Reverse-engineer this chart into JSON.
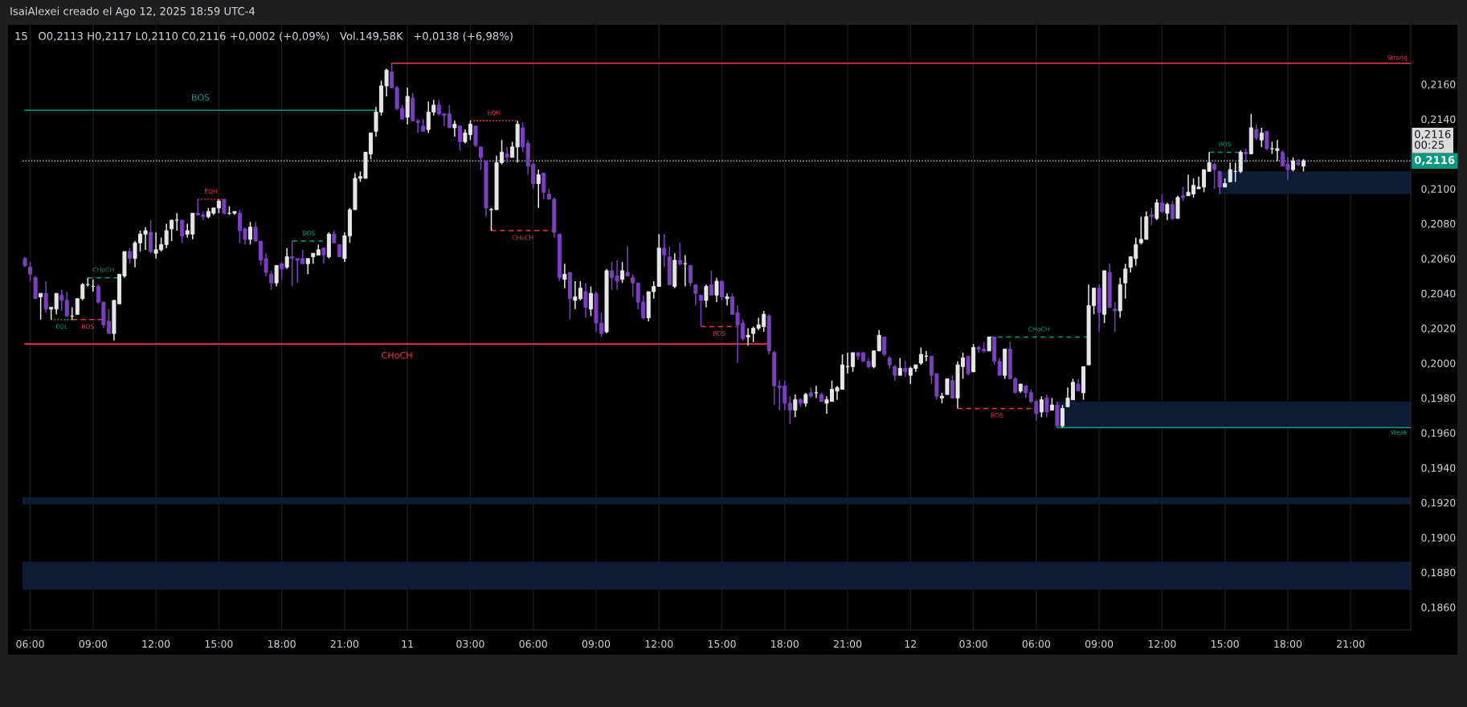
{
  "chart_data": {
    "type": "candlestick",
    "title": "IsaiAlexei creado el Ago 12, 2025 18:59 UTC-4",
    "subtitle": "15   O0,2113 H0,2117 L0,2110 C0,2116 +0,0002 (+0,09%)   Vol.149,58K   +0,0138 (+6,98%)",
    "x": [
      "2025-08-10T05:45",
      "2025-08-10T06:00",
      "2025-08-10T06:15",
      "2025-08-10T06:30",
      "2025-08-10T06:45",
      "2025-08-10T07:00",
      "2025-08-10T07:15",
      "2025-08-10T07:30",
      "2025-08-10T07:45",
      "2025-08-10T08:00",
      "2025-08-10T08:15",
      "2025-08-10T08:30",
      "2025-08-10T08:45",
      "2025-08-10T09:00",
      "2025-08-10T09:15",
      "2025-08-10T09:30",
      "2025-08-10T09:45",
      "2025-08-10T10:00",
      "2025-08-10T10:15",
      "2025-08-10T10:30",
      "2025-08-10T10:45",
      "2025-08-10T11:00",
      "2025-08-10T11:15",
      "2025-08-10T11:30",
      "2025-08-10T11:45",
      "2025-08-10T12:00",
      "2025-08-10T12:15",
      "2025-08-10T12:30",
      "2025-08-10T12:45",
      "2025-08-10T13:00",
      "2025-08-10T13:15",
      "2025-08-10T13:30",
      "2025-08-10T13:45",
      "2025-08-10T14:00",
      "2025-08-10T14:15",
      "2025-08-10T14:30",
      "2025-08-10T14:45",
      "2025-08-10T15:00",
      "2025-08-10T15:15",
      "2025-08-10T15:30",
      "2025-08-10T15:45",
      "2025-08-10T16:00",
      "2025-08-10T16:15",
      "2025-08-10T16:30",
      "2025-08-10T16:45",
      "2025-08-10T17:00",
      "2025-08-10T17:15",
      "2025-08-10T17:30",
      "2025-08-10T17:45",
      "2025-08-10T18:00",
      "2025-08-10T18:15",
      "2025-08-10T18:30",
      "2025-08-10T18:45",
      "2025-08-10T19:00",
      "2025-08-10T19:15",
      "2025-08-10T19:30",
      "2025-08-10T19:45",
      "2025-08-10T20:00",
      "2025-08-10T20:15",
      "2025-08-10T20:30",
      "2025-08-10T20:45",
      "2025-08-10T21:00",
      "2025-08-10T21:15",
      "2025-08-10T21:30",
      "2025-08-10T21:45",
      "2025-08-10T22:00",
      "2025-08-10T22:15",
      "2025-08-10T22:30",
      "2025-08-10T22:45",
      "2025-08-10T23:00",
      "2025-08-10T23:15",
      "2025-08-10T23:30",
      "2025-08-10T23:45",
      "2025-08-11T00:00",
      "2025-08-11T00:15",
      "2025-08-11T00:30",
      "2025-08-11T00:45",
      "2025-08-11T01:00",
      "2025-08-11T01:15",
      "2025-08-11T01:30",
      "2025-08-11T01:45",
      "2025-08-11T02:00",
      "2025-08-11T02:15",
      "2025-08-11T02:30",
      "2025-08-11T02:45",
      "2025-08-11T03:00",
      "2025-08-11T03:15",
      "2025-08-11T03:30",
      "2025-08-11T03:45",
      "2025-08-11T04:00",
      "2025-08-11T04:15",
      "2025-08-11T04:30",
      "2025-08-11T04:45",
      "2025-08-11T05:00",
      "2025-08-11T05:15",
      "2025-08-11T05:30",
      "2025-08-11T05:45",
      "2025-08-11T06:00",
      "2025-08-11T06:15",
      "2025-08-11T06:30",
      "2025-08-11T06:45",
      "2025-08-11T07:00",
      "2025-08-11T07:15",
      "2025-08-11T07:30",
      "2025-08-11T07:45",
      "2025-08-11T08:00",
      "2025-08-11T08:15",
      "2025-08-11T08:30",
      "2025-08-11T08:45",
      "2025-08-11T09:00",
      "2025-08-11T09:15",
      "2025-08-11T09:30",
      "2025-08-11T09:45",
      "2025-08-11T10:00",
      "2025-08-11T10:15",
      "2025-08-11T10:30",
      "2025-08-11T10:45",
      "2025-08-11T11:00",
      "2025-08-11T11:15",
      "2025-08-11T11:30",
      "2025-08-11T11:45",
      "2025-08-11T12:00",
      "2025-08-11T12:15",
      "2025-08-11T12:30",
      "2025-08-11T12:45",
      "2025-08-11T13:00",
      "2025-08-11T13:15",
      "2025-08-11T13:30",
      "2025-08-11T13:45",
      "2025-08-11T14:00",
      "2025-08-11T14:15",
      "2025-08-11T14:30",
      "2025-08-11T14:45",
      "2025-08-11T15:00",
      "2025-08-11T15:15",
      "2025-08-11T15:30",
      "2025-08-11T15:45",
      "2025-08-11T16:00",
      "2025-08-11T16:15",
      "2025-08-11T16:30",
      "2025-08-11T16:45",
      "2025-08-11T17:00",
      "2025-08-11T17:15",
      "2025-08-11T17:30",
      "2025-08-11T17:45",
      "2025-08-11T18:00",
      "2025-08-11T18:15",
      "2025-08-11T18:30",
      "2025-08-11T18:45",
      "2025-08-11T19:00",
      "2025-08-11T19:15",
      "2025-08-11T19:30",
      "2025-08-11T19:45",
      "2025-08-11T20:00",
      "2025-08-11T20:15",
      "2025-08-11T20:30",
      "2025-08-11T20:45",
      "2025-08-11T21:00",
      "2025-08-11T21:15",
      "2025-08-11T21:30",
      "2025-08-11T21:45",
      "2025-08-11T22:00",
      "2025-08-11T22:15",
      "2025-08-11T22:30",
      "2025-08-11T22:45",
      "2025-08-11T23:00",
      "2025-08-11T23:15",
      "2025-08-11T23:30",
      "2025-08-11T23:45",
      "2025-08-12T00:00",
      "2025-08-12T00:15",
      "2025-08-12T00:30",
      "2025-08-12T00:45",
      "2025-08-12T01:00",
      "2025-08-12T01:15",
      "2025-08-12T01:30",
      "2025-08-12T01:45",
      "2025-08-12T02:00",
      "2025-08-12T02:15",
      "2025-08-12T02:30",
      "2025-08-12T02:45",
      "2025-08-12T03:00",
      "2025-08-12T03:15",
      "2025-08-12T03:30",
      "2025-08-12T03:45",
      "2025-08-12T04:00",
      "2025-08-12T04:15",
      "2025-08-12T04:30",
      "2025-08-12T04:45",
      "2025-08-12T05:00",
      "2025-08-12T05:15",
      "2025-08-12T05:30",
      "2025-08-12T05:45",
      "2025-08-12T06:00",
      "2025-08-12T06:15",
      "2025-08-12T06:30",
      "2025-08-12T06:45",
      "2025-08-12T07:00",
      "2025-08-12T07:15",
      "2025-08-12T07:30",
      "2025-08-12T07:45",
      "2025-08-12T08:00",
      "2025-08-12T08:15",
      "2025-08-12T08:30",
      "2025-08-12T08:45",
      "2025-08-12T09:00",
      "2025-08-12T09:15",
      "2025-08-12T09:30",
      "2025-08-12T09:45",
      "2025-08-12T10:00",
      "2025-08-12T10:15",
      "2025-08-12T10:30",
      "2025-08-12T10:45",
      "2025-08-12T11:00",
      "2025-08-12T11:15",
      "2025-08-12T11:30",
      "2025-08-12T11:45",
      "2025-08-12T12:00",
      "2025-08-12T12:15",
      "2025-08-12T12:30",
      "2025-08-12T12:45",
      "2025-08-12T13:00",
      "2025-08-12T13:15",
      "2025-08-12T13:30",
      "2025-08-12T13:45",
      "2025-08-12T14:00",
      "2025-08-12T14:15",
      "2025-08-12T14:30",
      "2025-08-12T14:45",
      "2025-08-12T15:00",
      "2025-08-12T15:15",
      "2025-08-12T15:30",
      "2025-08-12T15:45",
      "2025-08-12T16:00",
      "2025-08-12T16:15",
      "2025-08-12T16:30",
      "2025-08-12T16:45",
      "2025-08-12T17:00",
      "2025-08-12T17:15",
      "2025-08-12T17:30",
      "2025-08-12T17:45",
      "2025-08-12T18:00",
      "2025-08-12T18:15",
      "2025-08-12T18:30",
      "2025-08-12T18:45"
    ],
    "ohlc": [
      [
        0.206,
        0.2061,
        0.2055,
        0.2056
      ],
      [
        0.2055,
        0.2058,
        0.2047,
        0.2051
      ],
      [
        0.2049,
        0.205,
        0.2037,
        0.2037
      ],
      [
        0.2038,
        0.204,
        0.2025,
        0.204
      ],
      [
        0.204,
        0.2047,
        0.2029,
        0.2031
      ],
      [
        0.2031,
        0.2032,
        0.2025,
        0.2032
      ],
      [
        0.2031,
        0.204,
        0.2028,
        0.204
      ],
      [
        0.2039,
        0.2042,
        0.203,
        0.2036
      ],
      [
        0.2036,
        0.2041,
        0.2027,
        0.2027
      ],
      [
        0.2027,
        0.2032,
        0.2025,
        0.2027
      ],
      [
        0.2028,
        0.2037,
        0.2028,
        0.2037
      ],
      [
        0.2037,
        0.2046,
        0.2036,
        0.2045
      ],
      [
        0.2045,
        0.2049,
        0.2044,
        0.2045
      ],
      [
        0.2044,
        0.2048,
        0.2041,
        0.2044
      ],
      [
        0.2044,
        0.2045,
        0.2034,
        0.2035
      ],
      [
        0.2035,
        0.2035,
        0.202,
        0.2022
      ],
      [
        0.2024,
        0.2031,
        0.2017,
        0.2017
      ],
      [
        0.2017,
        0.2036,
        0.2013,
        0.2036
      ],
      [
        0.2034,
        0.2051,
        0.2034,
        0.2051
      ],
      [
        0.205,
        0.2064,
        0.2049,
        0.2064
      ],
      [
        0.2064,
        0.2066,
        0.2057,
        0.206
      ],
      [
        0.206,
        0.207,
        0.2055,
        0.2069
      ],
      [
        0.2069,
        0.2076,
        0.2064,
        0.2074
      ],
      [
        0.2074,
        0.2078,
        0.2065,
        0.2076
      ],
      [
        0.2075,
        0.2082,
        0.2063,
        0.2064
      ],
      [
        0.2063,
        0.2075,
        0.206,
        0.2065
      ],
      [
        0.2065,
        0.2072,
        0.2064,
        0.2068
      ],
      [
        0.2068,
        0.208,
        0.2066,
        0.2076
      ],
      [
        0.2077,
        0.2082,
        0.207,
        0.2082
      ],
      [
        0.2082,
        0.2086,
        0.2076,
        0.2082
      ],
      [
        0.2082,
        0.2082,
        0.2069,
        0.2073
      ],
      [
        0.2074,
        0.208,
        0.2072,
        0.2076
      ],
      [
        0.2074,
        0.2086,
        0.2071,
        0.2086
      ],
      [
        0.2086,
        0.2094,
        0.2085,
        0.2085
      ],
      [
        0.2085,
        0.2087,
        0.2082,
        0.2084
      ],
      [
        0.2084,
        0.2089,
        0.2083,
        0.2087
      ],
      [
        0.2086,
        0.2089,
        0.2085,
        0.2089
      ],
      [
        0.2089,
        0.2094,
        0.2086,
        0.2093
      ],
      [
        0.2094,
        0.2094,
        0.2085,
        0.2086
      ],
      [
        0.2086,
        0.209,
        0.2085,
        0.2086
      ],
      [
        0.2086,
        0.2087,
        0.2085,
        0.2087
      ],
      [
        0.2086,
        0.2088,
        0.2069,
        0.2076
      ],
      [
        0.2077,
        0.2078,
        0.2068,
        0.2071
      ],
      [
        0.2071,
        0.2081,
        0.2068,
        0.2078
      ],
      [
        0.2078,
        0.2081,
        0.207,
        0.207
      ],
      [
        0.207,
        0.207,
        0.2056,
        0.2059
      ],
      [
        0.206,
        0.2063,
        0.205,
        0.2052
      ],
      [
        0.2051,
        0.2053,
        0.2042,
        0.2046
      ],
      [
        0.2046,
        0.2056,
        0.2044,
        0.2056
      ],
      [
        0.2057,
        0.2058,
        0.2048,
        0.2054
      ],
      [
        0.2055,
        0.2066,
        0.2054,
        0.2061
      ],
      [
        0.2061,
        0.207,
        0.2044,
        0.206
      ],
      [
        0.206,
        0.206,
        0.2046,
        0.2059
      ],
      [
        0.206,
        0.2065,
        0.2057,
        0.2057
      ],
      [
        0.2057,
        0.206,
        0.2051,
        0.206
      ],
      [
        0.2061,
        0.2063,
        0.2057,
        0.2063
      ],
      [
        0.2062,
        0.2068,
        0.2062,
        0.2065
      ],
      [
        0.2066,
        0.2066,
        0.2057,
        0.2062
      ],
      [
        0.2061,
        0.2075,
        0.206,
        0.2074
      ],
      [
        0.2074,
        0.2076,
        0.2069,
        0.2069
      ],
      [
        0.2068,
        0.2068,
        0.2061,
        0.2061
      ],
      [
        0.206,
        0.2075,
        0.2058,
        0.2073
      ],
      [
        0.2073,
        0.2089,
        0.2069,
        0.2088
      ],
      [
        0.2088,
        0.2109,
        0.2088,
        0.2106
      ],
      [
        0.2106,
        0.211,
        0.2104,
        0.2107
      ],
      [
        0.2106,
        0.2121,
        0.2106,
        0.2121
      ],
      [
        0.212,
        0.2132,
        0.2117,
        0.2132
      ],
      [
        0.2133,
        0.2147,
        0.213,
        0.2144
      ],
      [
        0.2144,
        0.2162,
        0.2142,
        0.2159
      ],
      [
        0.2159,
        0.2169,
        0.2153,
        0.2168
      ],
      [
        0.2167,
        0.2172,
        0.2158,
        0.2158
      ],
      [
        0.2158,
        0.2159,
        0.2145,
        0.2146
      ],
      [
        0.2146,
        0.2148,
        0.214,
        0.214
      ],
      [
        0.2141,
        0.2158,
        0.2137,
        0.2153
      ],
      [
        0.2152,
        0.2155,
        0.2139,
        0.2139
      ],
      [
        0.2139,
        0.214,
        0.2132,
        0.2138
      ],
      [
        0.2136,
        0.214,
        0.2133,
        0.2133
      ],
      [
        0.2134,
        0.215,
        0.2132,
        0.2144
      ],
      [
        0.2144,
        0.2151,
        0.2142,
        0.2148
      ],
      [
        0.2148,
        0.2151,
        0.2142,
        0.2143
      ],
      [
        0.2143,
        0.2143,
        0.2136,
        0.2142
      ],
      [
        0.2143,
        0.2148,
        0.2135,
        0.2135
      ],
      [
        0.2135,
        0.2139,
        0.213,
        0.2137
      ],
      [
        0.2136,
        0.2136,
        0.2122,
        0.2127
      ],
      [
        0.2127,
        0.2134,
        0.2126,
        0.2132
      ],
      [
        0.2131,
        0.2139,
        0.2128,
        0.2137
      ],
      [
        0.2136,
        0.2136,
        0.2124,
        0.2125
      ],
      [
        0.2124,
        0.2124,
        0.2111,
        0.2118
      ],
      [
        0.2116,
        0.2116,
        0.2084,
        0.2089
      ],
      [
        0.2088,
        0.2089,
        0.2076,
        0.2088
      ],
      [
        0.2088,
        0.2119,
        0.2088,
        0.2115
      ],
      [
        0.2115,
        0.2128,
        0.2114,
        0.2121
      ],
      [
        0.212,
        0.2124,
        0.2115,
        0.2118
      ],
      [
        0.2118,
        0.2127,
        0.2118,
        0.2124
      ],
      [
        0.2124,
        0.2139,
        0.2115,
        0.2137
      ],
      [
        0.2135,
        0.2138,
        0.2121,
        0.2124
      ],
      [
        0.2126,
        0.2128,
        0.2108,
        0.2113
      ],
      [
        0.2114,
        0.2115,
        0.21,
        0.2103
      ],
      [
        0.2103,
        0.2111,
        0.2089,
        0.2108
      ],
      [
        0.2109,
        0.2109,
        0.2094,
        0.2098
      ],
      [
        0.2097,
        0.21,
        0.2094,
        0.2094
      ],
      [
        0.2094,
        0.2095,
        0.2072,
        0.2075
      ],
      [
        0.2074,
        0.2074,
        0.2047,
        0.2049
      ],
      [
        0.2048,
        0.2057,
        0.2043,
        0.2051
      ],
      [
        0.2052,
        0.2052,
        0.2025,
        0.2037
      ],
      [
        0.2036,
        0.2047,
        0.2031,
        0.2038
      ],
      [
        0.2037,
        0.2047,
        0.2036,
        0.2043
      ],
      [
        0.2041,
        0.2046,
        0.2026,
        0.2032
      ],
      [
        0.2031,
        0.2044,
        0.2027,
        0.204
      ],
      [
        0.204,
        0.2041,
        0.2018,
        0.2023
      ],
      [
        0.2023,
        0.2029,
        0.2015,
        0.2017
      ],
      [
        0.2018,
        0.2054,
        0.2017,
        0.2053
      ],
      [
        0.2053,
        0.2058,
        0.2042,
        0.2049
      ],
      [
        0.205,
        0.2059,
        0.2042,
        0.2047
      ],
      [
        0.2048,
        0.2058,
        0.2046,
        0.2053
      ],
      [
        0.2052,
        0.2067,
        0.205,
        0.205
      ],
      [
        0.2049,
        0.2051,
        0.2038,
        0.2046
      ],
      [
        0.2046,
        0.2046,
        0.2031,
        0.2035
      ],
      [
        0.2035,
        0.2039,
        0.2025,
        0.2026
      ],
      [
        0.2026,
        0.2041,
        0.2024,
        0.2041
      ],
      [
        0.2041,
        0.2047,
        0.2037,
        0.2044
      ],
      [
        0.2044,
        0.2074,
        0.2044,
        0.2066
      ],
      [
        0.2066,
        0.2074,
        0.2055,
        0.2062
      ],
      [
        0.2061,
        0.2067,
        0.2045,
        0.2045
      ],
      [
        0.2044,
        0.2063,
        0.2043,
        0.2059
      ],
      [
        0.2059,
        0.2069,
        0.2056,
        0.2057
      ],
      [
        0.2057,
        0.2062,
        0.2044,
        0.2057
      ],
      [
        0.2056,
        0.2056,
        0.2044,
        0.2046
      ],
      [
        0.2045,
        0.2045,
        0.2033,
        0.204
      ],
      [
        0.2039,
        0.2039,
        0.2021,
        0.2036
      ],
      [
        0.2036,
        0.2045,
        0.2032,
        0.2044
      ],
      [
        0.2045,
        0.2053,
        0.2039,
        0.2039
      ],
      [
        0.2039,
        0.2049,
        0.2035,
        0.2047
      ],
      [
        0.2047,
        0.2047,
        0.2036,
        0.2038
      ],
      [
        0.2037,
        0.204,
        0.2033,
        0.2038
      ],
      [
        0.2038,
        0.204,
        0.2028,
        0.2028
      ],
      [
        0.2029,
        0.2033,
        0.2,
        0.2022
      ],
      [
        0.2023,
        0.2025,
        0.2013,
        0.2014
      ],
      [
        0.2015,
        0.202,
        0.201,
        0.2016
      ],
      [
        0.2017,
        0.2021,
        0.2012,
        0.202
      ],
      [
        0.202,
        0.2026,
        0.2019,
        0.2022
      ],
      [
        0.2021,
        0.203,
        0.2018,
        0.2028
      ],
      [
        0.2027,
        0.2028,
        0.2005,
        0.2007
      ],
      [
        0.2006,
        0.2007,
        0.1976,
        0.1987
      ],
      [
        0.1987,
        0.199,
        0.1973,
        0.1986
      ],
      [
        0.1987,
        0.199,
        0.1973,
        0.1977
      ],
      [
        0.1977,
        0.1981,
        0.1965,
        0.1973
      ],
      [
        0.1973,
        0.1982,
        0.1969,
        0.1979
      ],
      [
        0.1979,
        0.198,
        0.1975,
        0.1977
      ],
      [
        0.1977,
        0.1983,
        0.1975,
        0.1982
      ],
      [
        0.1983,
        0.1986,
        0.198,
        0.1981
      ],
      [
        0.1983,
        0.1987,
        0.198,
        0.1983
      ],
      [
        0.1982,
        0.1983,
        0.1978,
        0.1978
      ],
      [
        0.1977,
        0.1981,
        0.1971,
        0.1979
      ],
      [
        0.1978,
        0.199,
        0.1978,
        0.1985
      ],
      [
        0.1984,
        0.1987,
        0.1979,
        0.1986
      ],
      [
        0.1985,
        0.2005,
        0.1985,
        0.1999
      ],
      [
        0.1998,
        0.2006,
        0.1994,
        0.1998
      ],
      [
        0.1998,
        0.2006,
        0.1995,
        0.2006
      ],
      [
        0.2006,
        0.2006,
        0.2002,
        0.2004
      ],
      [
        0.2006,
        0.2006,
        0.2001,
        0.2001
      ],
      [
        0.2001,
        0.2003,
        0.1997,
        0.1998
      ],
      [
        0.1998,
        0.2007,
        0.1997,
        0.2007
      ],
      [
        0.2007,
        0.2019,
        0.2007,
        0.2016
      ],
      [
        0.2015,
        0.2015,
        0.2004,
        0.2005
      ],
      [
        0.2003,
        0.2004,
        0.1997,
        0.1999
      ],
      [
        0.1998,
        0.1999,
        0.199,
        0.1993
      ],
      [
        0.1993,
        0.2003,
        0.1993,
        0.1997
      ],
      [
        0.1997,
        0.2001,
        0.1992,
        0.1995
      ],
      [
        0.1993,
        0.1998,
        0.1988,
        0.1997
      ],
      [
        0.1997,
        0.1999,
        0.1995,
        0.1999
      ],
      [
        0.2,
        0.2009,
        0.1999,
        0.2005
      ],
      [
        0.2004,
        0.2007,
        0.2001,
        0.2004
      ],
      [
        0.2004,
        0.2004,
        0.1988,
        0.1993
      ],
      [
        0.1994,
        0.1994,
        0.1979,
        0.1981
      ],
      [
        0.198,
        0.1983,
        0.1977,
        0.1981
      ],
      [
        0.1982,
        0.1991,
        0.1982,
        0.1991
      ],
      [
        0.199,
        0.1993,
        0.198,
        0.198
      ],
      [
        0.198,
        0.2001,
        0.1974,
        0.1999
      ],
      [
        0.1998,
        0.2006,
        0.1991,
        0.2003
      ],
      [
        0.2004,
        0.2004,
        0.1993,
        0.1994
      ],
      [
        0.1995,
        0.2011,
        0.1995,
        0.2009
      ],
      [
        0.2009,
        0.201,
        0.2006,
        0.2008
      ],
      [
        0.2008,
        0.2012,
        0.2006,
        0.2007
      ],
      [
        0.2007,
        0.2015,
        0.2007,
        0.2015
      ],
      [
        0.2015,
        0.2015,
        0.1999,
        0.2001
      ],
      [
        0.2001,
        0.2003,
        0.1993,
        0.1993
      ],
      [
        0.1993,
        0.2008,
        0.1991,
        0.2008
      ],
      [
        0.2008,
        0.2012,
        0.1991,
        0.1991
      ],
      [
        0.1991,
        0.1992,
        0.1983,
        0.1983
      ],
      [
        0.1984,
        0.1988,
        0.1983,
        0.1988
      ],
      [
        0.1987,
        0.1987,
        0.198,
        0.1983
      ],
      [
        0.1983,
        0.1985,
        0.1977,
        0.1978
      ],
      [
        0.1978,
        0.1979,
        0.1967,
        0.1971
      ],
      [
        0.1972,
        0.1981,
        0.1969,
        0.1979
      ],
      [
        0.198,
        0.1982,
        0.1969,
        0.1972
      ],
      [
        0.1973,
        0.198,
        0.1973,
        0.1976
      ],
      [
        0.1976,
        0.1978,
        0.1963,
        0.1964
      ],
      [
        0.1964,
        0.1976,
        0.1963,
        0.1974
      ],
      [
        0.1975,
        0.1986,
        0.1975,
        0.198
      ],
      [
        0.1979,
        0.1991,
        0.1979,
        0.1989
      ],
      [
        0.1988,
        0.1991,
        0.1984,
        0.1984
      ],
      [
        0.1983,
        0.1998,
        0.1979,
        0.1998
      ],
      [
        0.1999,
        0.2045,
        0.1999,
        0.2033
      ],
      [
        0.2033,
        0.2043,
        0.2028,
        0.2043
      ],
      [
        0.2043,
        0.2045,
        0.2018,
        0.2029
      ],
      [
        0.2028,
        0.2053,
        0.2023,
        0.2053
      ],
      [
        0.2052,
        0.2057,
        0.2032,
        0.2032
      ],
      [
        0.2031,
        0.2035,
        0.2018,
        0.203
      ],
      [
        0.203,
        0.2049,
        0.2026,
        0.2045
      ],
      [
        0.2046,
        0.2057,
        0.2037,
        0.2054
      ],
      [
        0.2055,
        0.2061,
        0.2052,
        0.2061
      ],
      [
        0.206,
        0.2072,
        0.2056,
        0.2068
      ],
      [
        0.2069,
        0.2084,
        0.2068,
        0.2071
      ],
      [
        0.2071,
        0.2087,
        0.2071,
        0.2084
      ],
      [
        0.2085,
        0.2089,
        0.2079,
        0.2084
      ],
      [
        0.2083,
        0.2094,
        0.2082,
        0.2092
      ],
      [
        0.2092,
        0.2097,
        0.2086,
        0.2087
      ],
      [
        0.2086,
        0.2092,
        0.2082,
        0.2091
      ],
      [
        0.2091,
        0.2093,
        0.2082,
        0.2083
      ],
      [
        0.2083,
        0.2096,
        0.2083,
        0.2095
      ],
      [
        0.2096,
        0.2101,
        0.2093,
        0.2095
      ],
      [
        0.2096,
        0.2108,
        0.2096,
        0.2098
      ],
      [
        0.2097,
        0.2106,
        0.2095,
        0.2102
      ],
      [
        0.21,
        0.2107,
        0.21,
        0.2101
      ],
      [
        0.2101,
        0.2111,
        0.2098,
        0.2111
      ],
      [
        0.211,
        0.2121,
        0.211,
        0.2115
      ],
      [
        0.2114,
        0.2115,
        0.21,
        0.2111
      ],
      [
        0.211,
        0.211,
        0.2097,
        0.2101
      ],
      [
        0.2101,
        0.2106,
        0.2101,
        0.2103
      ],
      [
        0.2104,
        0.2115,
        0.2104,
        0.2111
      ],
      [
        0.211,
        0.2115,
        0.2104,
        0.211
      ],
      [
        0.211,
        0.2122,
        0.2109,
        0.2121
      ],
      [
        0.2121,
        0.2123,
        0.2115,
        0.212
      ],
      [
        0.212,
        0.2143,
        0.212,
        0.2135
      ],
      [
        0.2134,
        0.2137,
        0.2128,
        0.2129
      ],
      [
        0.2128,
        0.2135,
        0.2124,
        0.2132
      ],
      [
        0.2133,
        0.2133,
        0.2122,
        0.2123
      ],
      [
        0.2123,
        0.2127,
        0.212,
        0.2123
      ],
      [
        0.2122,
        0.2128,
        0.2116,
        0.2123
      ],
      [
        0.2121,
        0.2122,
        0.2113,
        0.2113
      ],
      [
        0.2114,
        0.2118,
        0.2105,
        0.2111
      ],
      [
        0.2111,
        0.2118,
        0.211,
        0.2116
      ],
      [
        0.2115,
        0.2117,
        0.2113,
        0.2114
      ],
      [
        0.2113,
        0.2117,
        0.211,
        0.2116
      ]
    ],
    "colors": [
      "#7b3fc0",
      "#7b3fc0",
      "#7b3fc0",
      "#e6e6e6",
      "#7b3fc0",
      "#e6e6e6",
      "#e6e6e6",
      "#7b3fc0",
      "#7b3fc0",
      "#e6e6e6",
      "#e6e6e6",
      "#e6e6e6",
      "#e6e6e6",
      "#e6e6e6",
      "#7b3fc0",
      "#7b3fc0",
      "#7b3fc0",
      "#e6e6e6",
      "#e6e6e6",
      "#e6e6e6",
      "#7b3fc0",
      "#e6e6e6",
      "#e6e6e6",
      "#e6e6e6",
      "#7b3fc0",
      "#e6e6e6",
      "#e6e6e6",
      "#e6e6e6",
      "#e6e6e6",
      "#e6e6e6",
      "#7b3fc0",
      "#e6e6e6",
      "#e6e6e6",
      "#7b3fc0",
      "#7b3fc0",
      "#e6e6e6",
      "#e6e6e6",
      "#e6e6e6",
      "#7b3fc0",
      "#e6e6e6",
      "#e6e6e6",
      "#7b3fc0",
      "#7b3fc0",
      "#e6e6e6",
      "#7b3fc0",
      "#7b3fc0",
      "#7b3fc0",
      "#7b3fc0",
      "#e6e6e6",
      "#7b3fc0",
      "#e6e6e6",
      "#7b3fc0",
      "#7b3fc0",
      "#7b3fc0",
      "#e6e6e6",
      "#e6e6e6",
      "#e6e6e6",
      "#7b3fc0",
      "#e6e6e6",
      "#7b3fc0",
      "#7b3fc0",
      "#e6e6e6",
      "#e6e6e6",
      "#e6e6e6",
      "#e6e6e6",
      "#e6e6e6",
      "#e6e6e6",
      "#e6e6e6",
      "#e6e6e6",
      "#e6e6e6",
      "#7b3fc0",
      "#7b3fc0",
      "#7b3fc0",
      "#e6e6e6",
      "#7b3fc0",
      "#7b3fc0",
      "#7b3fc0",
      "#e6e6e6",
      "#e6e6e6",
      "#7b3fc0",
      "#7b3fc0",
      "#7b3fc0",
      "#e6e6e6",
      "#7b3fc0",
      "#e6e6e6",
      "#e6e6e6",
      "#7b3fc0",
      "#7b3fc0",
      "#7b3fc0",
      "#e6e6e6",
      "#e6e6e6",
      "#e6e6e6",
      "#7b3fc0",
      "#e6e6e6",
      "#e6e6e6",
      "#7b3fc0",
      "#7b3fc0",
      "#7b3fc0",
      "#e6e6e6",
      "#7b3fc0",
      "#7b3fc0",
      "#7b3fc0",
      "#7b3fc0",
      "#e6e6e6",
      "#7b3fc0",
      "#e6e6e6",
      "#e6e6e6",
      "#7b3fc0",
      "#e6e6e6",
      "#7b3fc0",
      "#7b3fc0",
      "#e6e6e6",
      "#7b3fc0",
      "#7b3fc0",
      "#e6e6e6",
      "#7b3fc0",
      "#7b3fc0",
      "#7b3fc0",
      "#7b3fc0",
      "#e6e6e6",
      "#e6e6e6",
      "#e6e6e6",
      "#7b3fc0",
      "#7b3fc0",
      "#e6e6e6",
      "#7b3fc0",
      "#e6e6e6",
      "#7b3fc0",
      "#7b3fc0",
      "#7b3fc0",
      "#e6e6e6",
      "#7b3fc0",
      "#e6e6e6",
      "#7b3fc0",
      "#e6e6e6",
      "#7b3fc0",
      "#7b3fc0",
      "#7b3fc0",
      "#e6e6e6",
      "#e6e6e6",
      "#e6e6e6",
      "#e6e6e6",
      "#7b3fc0",
      "#7b3fc0",
      "#7b3fc0",
      "#7b3fc0",
      "#7b3fc0",
      "#e6e6e6",
      "#7b3fc0",
      "#e6e6e6",
      "#7b3fc0",
      "#e6e6e6",
      "#7b3fc0",
      "#e6e6e6",
      "#e6e6e6",
      "#e6e6e6",
      "#e6e6e6",
      "#e6e6e6",
      "#e6e6e6",
      "#7b3fc0",
      "#7b3fc0",
      "#7b3fc0",
      "#e6e6e6",
      "#e6e6e6",
      "#7b3fc0",
      "#7b3fc0",
      "#7b3fc0",
      "#e6e6e6",
      "#7b3fc0",
      "#e6e6e6",
      "#e6e6e6",
      "#e6e6e6",
      "#e6e6e6",
      "#7b3fc0",
      "#7b3fc0",
      "#e6e6e6",
      "#e6e6e6",
      "#7b3fc0",
      "#e6e6e6",
      "#e6e6e6",
      "#7b3fc0",
      "#e6e6e6",
      "#7b3fc0",
      "#7b3fc0",
      "#e6e6e6",
      "#7b3fc0",
      "#7b3fc0",
      "#e6e6e6",
      "#7b3fc0",
      "#7b3fc0",
      "#e6e6e6",
      "#7b3fc0",
      "#7b3fc0",
      "#7b3fc0",
      "#e6e6e6",
      "#7b3fc0",
      "#e6e6e6",
      "#7b3fc0",
      "#e6e6e6",
      "#e6e6e6",
      "#e6e6e6",
      "#7b3fc0",
      "#e6e6e6",
      "#e6e6e6",
      "#e6e6e6",
      "#7b3fc0",
      "#e6e6e6",
      "#7b3fc0",
      "#7b3fc0",
      "#e6e6e6",
      "#e6e6e6",
      "#e6e6e6",
      "#e6e6e6",
      "#e6e6e6",
      "#e6e6e6",
      "#7b3fc0",
      "#e6e6e6",
      "#7b3fc0",
      "#e6e6e6",
      "#7b3fc0",
      "#e6e6e6",
      "#7b3fc0",
      "#e6e6e6",
      "#e6e6e6",
      "#e6e6e6",
      "#e6e6e6",
      "#e6e6e6",
      "#7b3fc0",
      "#7b3fc0",
      "#e6e6e6",
      "#e6e6e6",
      "#e6e6e6",
      "#e6e6e6",
      "#7b3fc0",
      "#e6e6e6",
      "#7b3fc0",
      "#e6e6e6",
      "#7b3fc0",
      "#e6e6e6",
      "#e6e6e6",
      "#7b3fc0",
      "#7b3fc0",
      "#e6e6e6",
      "#7b3fc0",
      "#e6e6e6"
    ],
    "series": [
      {
        "type": "area",
        "x": [
          "2025-08-12T14:45",
          "2025-08-12T23:52"
        ],
        "values": [
          null,
          null
        ],
        "lower": [
          0.2097,
          0.2097
        ],
        "upper": [
          0.211,
          0.211
        ],
        "color": "#0d1b33"
      },
      {
        "type": "area",
        "x": [
          "2025-08-12T07:00",
          "2025-08-12T23:52"
        ],
        "values": [
          null,
          null
        ],
        "lower": [
          0.1963,
          0.1963
        ],
        "upper": [
          0.1978,
          0.1978
        ],
        "color": "#0d1b33"
      },
      {
        "type": "line",
        "name": "BOS",
        "x": [
          "2025-08-10T05:45",
          "2025-08-10T22:30"
        ],
        "values": [
          0.2145,
          0.2145
        ],
        "color": "#089981",
        "line_style": "solid"
      },
      {
        "type": "line",
        "name": "CHoCH",
        "x": [
          "2025-08-10T05:45",
          "2025-08-11T17:15"
        ],
        "values": [
          0.2011,
          0.2011
        ],
        "color": "#f23645",
        "line_style": "solid"
      },
      {
        "type": "line",
        "name": "EQL",
        "x": [
          "2025-08-10T07:00",
          "2025-08-10T08:00"
        ],
        "values": [
          0.2025,
          0.2025
        ],
        "color": "#089981",
        "line_style": "dotted"
      },
      {
        "type": "line",
        "name": "BOS",
        "x": [
          "2025-08-10T08:00",
          "2025-08-10T09:30"
        ],
        "values": [
          0.2025,
          0.2025
        ],
        "color": "#f23645",
        "line_style": "dashed"
      },
      {
        "type": "line",
        "name": "CHoCH",
        "x": [
          "2025-08-10T08:45",
          "2025-08-10T10:15"
        ],
        "values": [
          0.2049,
          0.2049
        ],
        "color": "#089981",
        "line_style": "dashed"
      },
      {
        "type": "line",
        "name": "EQH",
        "x": [
          "2025-08-10T14:00",
          "2025-08-10T15:15"
        ],
        "values": [
          0.2094,
          0.2094
        ],
        "color": "#f23645",
        "line_style": "dotted"
      },
      {
        "type": "line",
        "name": "BOS",
        "x": [
          "2025-08-10T18:30",
          "2025-08-10T20:05"
        ],
        "values": [
          0.207,
          0.207
        ],
        "color": "#089981",
        "line_style": "dashed"
      },
      {
        "type": "line",
        "name": "Strong",
        "x": [
          "2025-08-10T23:15",
          "2025-08-12T23:52"
        ],
        "values": [
          0.2172,
          0.2172
        ],
        "color": "#f23645",
        "line_style": "solid"
      },
      {
        "type": "line",
        "name": "EQH",
        "x": [
          "2025-08-11T03:00",
          "2025-08-11T05:15"
        ],
        "values": [
          0.2139,
          0.2139
        ],
        "color": "#f23645",
        "line_style": "dotted"
      },
      {
        "type": "line",
        "name": "CHoCH",
        "x": [
          "2025-08-11T04:00",
          "2025-08-11T07:00"
        ],
        "values": [
          0.2076,
          0.2076
        ],
        "color": "#f23645",
        "line_style": "dashed"
      },
      {
        "type": "line",
        "name": "BOS",
        "x": [
          "2025-08-11T14:00",
          "2025-08-11T15:45"
        ],
        "values": [
          0.2021,
          0.2021
        ],
        "color": "#f23645",
        "line_style": "dashed"
      },
      {
        "type": "line",
        "name": "BOS",
        "x": [
          "2025-08-12T02:15",
          "2025-08-12T06:00"
        ],
        "values": [
          0.1974,
          0.1974
        ],
        "color": "#f23645",
        "line_style": "dashed"
      },
      {
        "type": "line",
        "name": "CHoCH",
        "x": [
          "2025-08-12T03:45",
          "2025-08-12T08:30"
        ],
        "values": [
          0.2015,
          0.2015
        ],
        "color": "#089981",
        "line_style": "dashed"
      },
      {
        "type": "line",
        "name": "Weak",
        "x": [
          "2025-08-12T07:00",
          "2025-08-12T23:52"
        ],
        "values": [
          0.1963,
          0.1963
        ],
        "color": "#089981",
        "line_style": "solid"
      },
      {
        "type": "line",
        "name": "BOS",
        "x": [
          "2025-08-12T14:15",
          "2025-08-12T15:45"
        ],
        "values": [
          0.2121,
          0.2121
        ],
        "color": "#089981",
        "line_style": "dashed"
      }
    ],
    "bands": [
      {
        "axis": "y",
        "from": 0.1919,
        "to": 0.1923,
        "color": "#0d1b33"
      },
      {
        "axis": "y",
        "from": 0.187,
        "to": 0.1886,
        "color": "#0d1b33"
      }
    ],
    "ref_lines": [
      {
        "axis": "y",
        "value": 0.2116,
        "label": "0,2116",
        "color": "#c8c8c8",
        "line_style": "dotted"
      }
    ],
    "annotations": [
      "0,2116",
      "00:25"
    ],
    "xlim": [
      "2025-08-10T05:38",
      "2025-08-12T23:52"
    ],
    "xticks": [
      {
        "value": "2025-08-10T06:00",
        "label": "06:00"
      },
      {
        "value": "2025-08-10T09:00",
        "label": "09:00"
      },
      {
        "value": "2025-08-10T12:00",
        "label": "12:00"
      },
      {
        "value": "2025-08-10T15:00",
        "label": "15:00"
      },
      {
        "value": "2025-08-10T18:00",
        "label": "18:00"
      },
      {
        "value": "2025-08-10T21:00",
        "label": "21:00"
      },
      {
        "value": "2025-08-11T00:00",
        "label": "11"
      },
      {
        "value": "2025-08-11T03:00",
        "label": "03:00"
      },
      {
        "value": "2025-08-11T06:00",
        "label": "06:00"
      },
      {
        "value": "2025-08-11T09:00",
        "label": "09:00"
      },
      {
        "value": "2025-08-11T12:00",
        "label": "12:00"
      },
      {
        "value": "2025-08-11T15:00",
        "label": "15:00"
      },
      {
        "value": "2025-08-11T18:00",
        "label": "18:00"
      },
      {
        "value": "2025-08-11T21:00",
        "label": "21:00"
      },
      {
        "value": "2025-08-12T00:00",
        "label": "12"
      },
      {
        "value": "2025-08-12T03:00",
        "label": "03:00"
      },
      {
        "value": "2025-08-12T06:00",
        "label": "06:00"
      },
      {
        "value": "2025-08-12T09:00",
        "label": "09:00"
      },
      {
        "value": "2025-08-12T12:00",
        "label": "12:00"
      },
      {
        "value": "2025-08-12T15:00",
        "label": "15:00"
      },
      {
        "value": "2025-08-12T18:00",
        "label": "18:00"
      },
      {
        "value": "2025-08-12T21:00",
        "label": "21:00"
      }
    ],
    "ylim": [
      0.1847,
      0.2194
    ],
    "yticks": [
      {
        "value": 0.216,
        "label": "0,2160"
      },
      {
        "value": 0.214,
        "label": "0,2140"
      },
      {
        "value": 0.21,
        "label": "0,2100"
      },
      {
        "value": 0.208,
        "label": "0,2080"
      },
      {
        "value": 0.206,
        "label": "0,2060"
      },
      {
        "value": 0.204,
        "label": "0,2040"
      },
      {
        "value": 0.202,
        "label": "0,2020"
      },
      {
        "value": 0.2,
        "label": "0,2000"
      },
      {
        "value": 0.198,
        "label": "0,1980"
      },
      {
        "value": 0.196,
        "label": "0,1960"
      },
      {
        "value": 0.194,
        "label": "0,1940"
      },
      {
        "value": 0.192,
        "label": "0,1920"
      },
      {
        "value": 0.19,
        "label": "0,1900"
      },
      {
        "value": 0.188,
        "label": "0,1880"
      },
      {
        "value": 0.186,
        "label": "0,1860"
      }
    ],
    "grid": "x"
  }
}
